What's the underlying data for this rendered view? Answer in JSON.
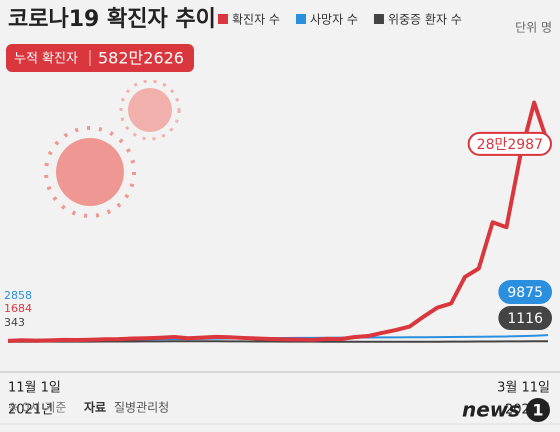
{
  "chart_data": {
    "type": "line",
    "title": "코로나19 확진자 추이",
    "unit": "단위 명",
    "cumulative": {
      "label": "누적 확진자",
      "value": 5822626,
      "value_label": "582만2626"
    },
    "categories": [
      "11월 1일",
      null,
      null,
      null,
      null,
      null,
      null,
      null,
      null,
      null,
      null,
      null,
      null,
      null,
      null,
      null,
      null,
      null,
      null,
      null,
      null,
      null,
      null,
      null,
      null,
      null,
      null,
      null,
      null,
      null,
      null,
      null,
      null,
      null,
      null,
      null,
      null,
      null,
      null,
      "3월 11일"
    ],
    "year_labels": [
      "2021년",
      "2022년"
    ],
    "ylim": [
      0,
      400000
    ],
    "series": [
      {
        "name": "확진자 수",
        "color": "#d9363e",
        "values": [
          1684,
          2500,
          2000,
          2400,
          3000,
          2800,
          3200,
          4000,
          4100,
          5000,
          5300,
          6000,
          7100,
          5400,
          6200,
          7400,
          6800,
          5800,
          5000,
          4200,
          3800,
          3500,
          3000,
          4400,
          4100,
          7000,
          8500,
          13000,
          17000,
          22000,
          36000,
          49000,
          55000,
          93000,
          105000,
          171000,
          164000,
          266000,
          342000,
          282987
        ],
        "value_labels": [
          null,
          null,
          null,
          null,
          null,
          null,
          null,
          null,
          null,
          null,
          null,
          null,
          null,
          null,
          null,
          null,
          null,
          null,
          null,
          null,
          null,
          null,
          null,
          null,
          null,
          null,
          null,
          null,
          null,
          null,
          null,
          null,
          null,
          null,
          null,
          null,
          null,
          null,
          null,
          "28만2987"
        ]
      },
      {
        "name": "사망자 수",
        "color": "#2b8fe0",
        "values": [
          2858,
          2900,
          2950,
          3000,
          3080,
          3160,
          3250,
          3350,
          3480,
          3620,
          3780,
          3960,
          4150,
          4350,
          4550,
          4760,
          4960,
          5150,
          5330,
          5500,
          5660,
          5810,
          5950,
          6080,
          6200,
          6320,
          6430,
          6540,
          6640,
          6750,
          6860,
          6980,
          7100,
          7250,
          7420,
          7640,
          7920,
          8350,
          9000,
          9875
        ]
      },
      {
        "name": "위중증 환자 수",
        "color": "#444444",
        "values": [
          343,
          380,
          420,
          470,
          520,
          560,
          600,
          650,
          720,
          800,
          880,
          950,
          1020,
          1080,
          1100,
          1050,
          980,
          880,
          780,
          680,
          600,
          520,
          450,
          400,
          350,
          300,
          280,
          270,
          280,
          300,
          340,
          400,
          480,
          560,
          650,
          760,
          870,
          960,
          1040,
          1116
        ]
      }
    ],
    "source_note": "※ 0시 기준",
    "source_label": "자료",
    "source": "질병관리청",
    "logo": "news",
    "logo_num": "1"
  }
}
